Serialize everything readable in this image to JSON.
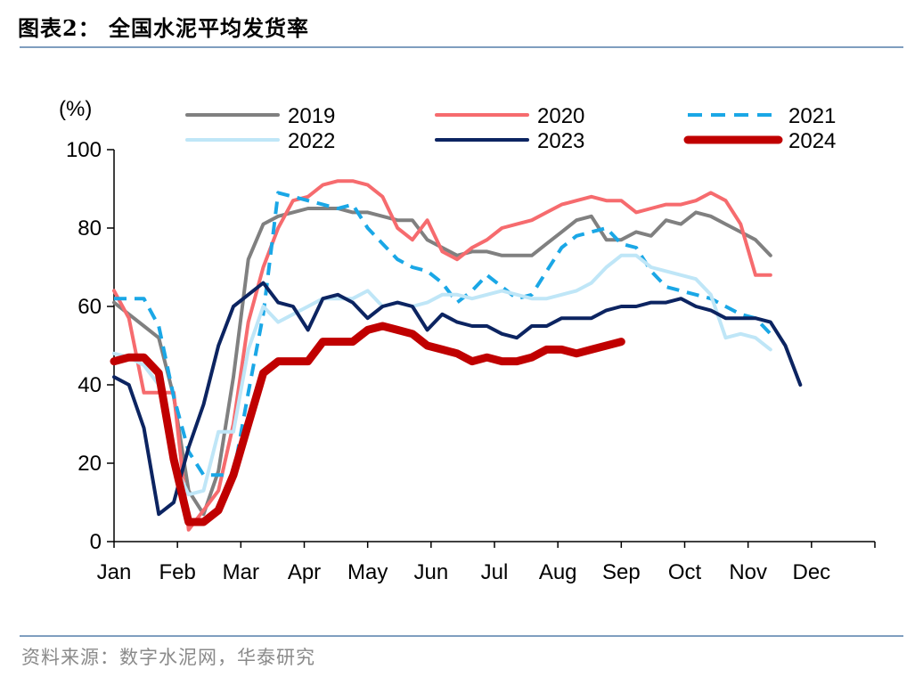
{
  "header": {
    "title": "图表2：  全国水泥平均发货率"
  },
  "footer": {
    "source": "资料来源：数字水泥网，华泰研究"
  },
  "chart_data": {
    "type": "line",
    "unit_label": "(%)",
    "ylim": [
      0,
      100
    ],
    "yticks": [
      0,
      20,
      40,
      60,
      80,
      100
    ],
    "x_weeks": 52,
    "months": [
      "Jan",
      "Feb",
      "Mar",
      "Apr",
      "May",
      "Jun",
      "Jul",
      "Aug",
      "Sep",
      "Oct",
      "Nov",
      "Dec"
    ],
    "legend_placement": "top",
    "series": [
      {
        "name": "2019",
        "color": "#808080",
        "dash": "solid",
        "width": 4,
        "values": [
          61,
          58,
          55,
          52,
          37,
          13,
          7,
          18,
          42,
          72,
          81,
          83,
          84,
          85,
          85,
          85,
          84,
          84,
          83,
          82,
          82,
          77,
          75,
          73,
          74,
          74,
          73,
          73,
          73,
          76,
          79,
          82,
          83,
          77,
          77,
          79,
          78,
          82,
          81,
          84,
          83,
          81,
          79,
          77,
          73
        ]
      },
      {
        "name": "2020",
        "color": "#f66b6e",
        "dash": "solid",
        "width": 4,
        "values": [
          64,
          57,
          38,
          38,
          38,
          3,
          8,
          13,
          30,
          56,
          70,
          80,
          87,
          88,
          91,
          92,
          92,
          91,
          88,
          80,
          77,
          82,
          74,
          72,
          75,
          77,
          80,
          81,
          82,
          84,
          86,
          87,
          88,
          87,
          87,
          84,
          85,
          86,
          86,
          87,
          89,
          87,
          81,
          68,
          68
        ]
      },
      {
        "name": "2021",
        "color": "#1aa7e6",
        "dash": "dash",
        "width": 4,
        "values": [
          62,
          62,
          62,
          55,
          37,
          23,
          17,
          17,
          17,
          38,
          58,
          89,
          88,
          87,
          86,
          85,
          86,
          80,
          76,
          72,
          70,
          69,
          66,
          61,
          64,
          68,
          65,
          62,
          63,
          69,
          75,
          78,
          79,
          80,
          76,
          75,
          69,
          65,
          64,
          63,
          62,
          60,
          58,
          57,
          53
        ]
      },
      {
        "name": "2022",
        "color": "#bfe6f7",
        "dash": "solid",
        "width": 4,
        "values": [
          48,
          47,
          45,
          40,
          20,
          12,
          13,
          28,
          28,
          49,
          60,
          56,
          58,
          60,
          62,
          62,
          62,
          64,
          60,
          61,
          60,
          61,
          63,
          63,
          62,
          63,
          64,
          63,
          62,
          62,
          63,
          64,
          66,
          70,
          73,
          73,
          70,
          69,
          68,
          67,
          63,
          52,
          53,
          52,
          49
        ]
      },
      {
        "name": "2023",
        "color": "#0c2461",
        "dash": "solid",
        "width": 4,
        "values": [
          42,
          40,
          29,
          7,
          10,
          24,
          35,
          50,
          60,
          63,
          66,
          61,
          60,
          54,
          62,
          63,
          61,
          57,
          60,
          61,
          60,
          54,
          58,
          56,
          55,
          55,
          53,
          52,
          55,
          55,
          57,
          57,
          57,
          59,
          60,
          60,
          61,
          61,
          62,
          60,
          59,
          57,
          57,
          57,
          56,
          50,
          40
        ]
      },
      {
        "name": "2024",
        "color": "#c00000",
        "dash": "solid",
        "width": 9,
        "values": [
          46,
          47,
          47,
          43,
          21,
          5,
          5,
          8,
          17,
          30,
          43,
          46,
          46,
          46,
          51,
          51,
          51,
          54,
          55,
          54,
          53,
          50,
          49,
          48,
          46,
          47,
          46,
          46,
          47,
          49,
          49,
          48,
          49,
          50,
          51
        ]
      }
    ]
  }
}
